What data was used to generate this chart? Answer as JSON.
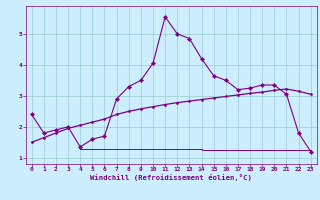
{
  "xlabel": "Windchill (Refroidissement éolien,°C)",
  "x": [
    0,
    1,
    2,
    3,
    4,
    5,
    6,
    7,
    8,
    9,
    10,
    11,
    12,
    13,
    14,
    15,
    16,
    17,
    18,
    19,
    20,
    21,
    22,
    23
  ],
  "line1": [
    2.4,
    1.8,
    1.9,
    2.0,
    1.35,
    1.6,
    1.7,
    2.9,
    3.3,
    3.5,
    4.05,
    5.55,
    5.0,
    4.85,
    4.2,
    3.65,
    3.5,
    3.2,
    3.25,
    3.35,
    3.35,
    3.05,
    1.8,
    1.2
  ],
  "smooth": [
    1.5,
    1.65,
    1.8,
    1.95,
    2.05,
    2.15,
    2.25,
    2.4,
    2.5,
    2.58,
    2.65,
    2.72,
    2.78,
    2.83,
    2.88,
    2.93,
    2.98,
    3.03,
    3.08,
    3.12,
    3.18,
    3.22,
    3.15,
    3.05
  ],
  "flat_x": [
    4,
    14,
    14,
    17,
    17,
    23
  ],
  "flat_y": [
    1.3,
    1.3,
    1.25,
    1.25,
    1.25,
    1.25
  ],
  "line_color": "#800080",
  "bg_color": "#cceeff",
  "grid_color": "#99cccc",
  "xlim": [
    -0.5,
    23.5
  ],
  "ylim": [
    0.8,
    5.9
  ],
  "xticks": [
    0,
    1,
    2,
    3,
    4,
    5,
    6,
    7,
    8,
    9,
    10,
    11,
    12,
    13,
    14,
    15,
    16,
    17,
    18,
    19,
    20,
    21,
    22,
    23
  ],
  "yticks": [
    1,
    2,
    3,
    4,
    5
  ],
  "tick_fontsize": 4.5,
  "label_fontsize": 5.2
}
